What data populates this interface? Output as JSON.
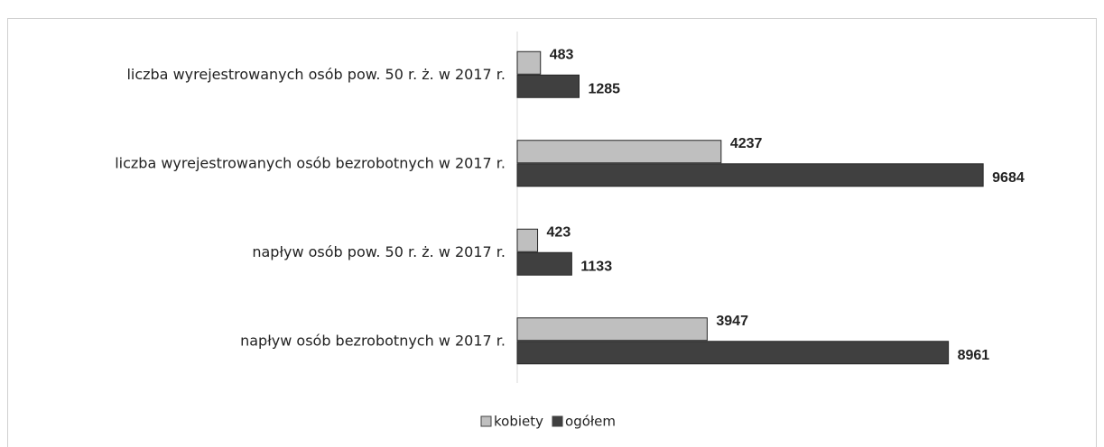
{
  "chart_data": {
    "type": "bar",
    "orientation": "horizontal",
    "categories": [
      "liczba wyrejestrowanych osób pow. 50 r. ż. w 2017 r.",
      "liczba wyrejestrowanych osób bezrobotnych w 2017 r.",
      "napływ osób pow. 50 r. ż. w 2017 r.",
      "napływ osób bezrobotnych w 2017 r."
    ],
    "series": [
      {
        "name": "kobiety",
        "color": "#bfbfbf",
        "values": [
          483,
          4237,
          423,
          3947
        ]
      },
      {
        "name": "ogółem",
        "color": "#404040",
        "values": [
          1285,
          9684,
          1133,
          8961
        ]
      }
    ],
    "xlim": [
      0,
      10000
    ],
    "legend": "bottom"
  }
}
